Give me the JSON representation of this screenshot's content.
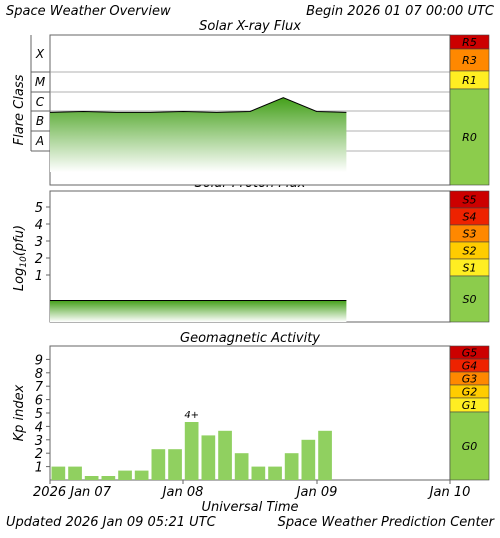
{
  "header": {
    "title": "Space Weather Overview",
    "begin": "Begin 2026 01 07 00:00 UTC"
  },
  "footer": {
    "updated": "Updated 2026 Jan 09 05:21 UTC",
    "source": "Space Weather Prediction Center",
    "xaxis_label": "Universal Time"
  },
  "colors": {
    "panel_green": "#8ccc4c",
    "level5": "#cc0000",
    "level4": "#ee2200",
    "level3": "#ff8800",
    "level2": "#ffcc00",
    "level1": "#ffee22",
    "kp_bar": "#90d060",
    "flux_line": "#000000"
  },
  "chart_data": [
    {
      "type": "area",
      "title": "Solar X-ray Flux",
      "ylabel": "Flare Class",
      "y_scale": "log",
      "class_labels": [
        "X",
        "M",
        "C",
        "B",
        "A"
      ],
      "scale_labels": [
        "R5",
        "R3",
        "R1",
        "R0"
      ],
      "x": [
        "2026-01-07 00:00",
        "2026-01-07 06:00",
        "2026-01-07 12:00",
        "2026-01-07 18:00",
        "2026-01-08 00:00",
        "2026-01-08 06:00",
        "2026-01-08 12:00",
        "2026-01-08 18:00",
        "2026-01-09 00:00",
        "2026-01-09 05:21"
      ],
      "series": [
        {
          "values_class": [
            "B9",
            "C1",
            "B9",
            "B9",
            "C1",
            "B9",
            "C1",
            "C5",
            "C1",
            "B9"
          ]
        }
      ]
    },
    {
      "type": "area",
      "title": "Solar Proton Flux",
      "ylabel": "Log10(pfu)",
      "yticks": [
        "5",
        "4",
        "3",
        "2",
        "1"
      ],
      "ylim": [
        -1,
        6
      ],
      "scale_labels": [
        "S5",
        "S4",
        "S3",
        "S2",
        "S1",
        "S0"
      ],
      "x": [
        "2026-01-07 00:00",
        "2026-01-08 00:00",
        "2026-01-09 00:00",
        "2026-01-09 05:21"
      ],
      "series": [
        {
          "values": [
            -0.5,
            -0.5,
            -0.5,
            -0.5
          ]
        }
      ]
    },
    {
      "type": "bar",
      "title": "Geomagnetic Activity",
      "ylabel": "Kp index",
      "yticks": [
        "9",
        "8",
        "7",
        "6",
        "5",
        "4",
        "3",
        "2",
        "1"
      ],
      "ylim": [
        0,
        10
      ],
      "scale_labels": [
        "G5",
        "G4",
        "G3",
        "G2",
        "G1",
        "G0"
      ],
      "values": [
        1.0,
        1.0,
        0.3,
        0.3,
        0.7,
        0.7,
        2.3,
        2.3,
        4.33,
        3.33,
        3.67,
        2.0,
        1.0,
        1.0,
        2.0,
        3.0,
        3.67
      ],
      "peak_label": "4+"
    }
  ],
  "x_axis": {
    "ticks": [
      "2026 Jan 07",
      "Jan 08",
      "Jan 09",
      "Jan 10"
    ]
  }
}
